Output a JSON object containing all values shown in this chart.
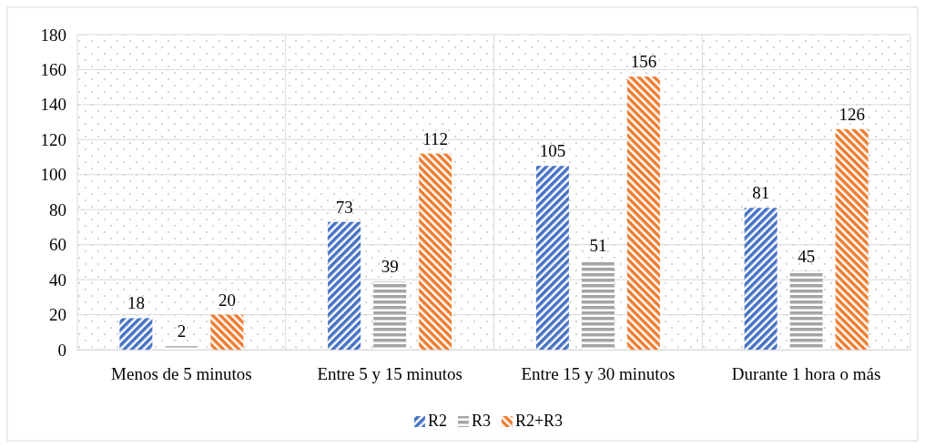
{
  "chart_data": {
    "type": "bar",
    "categories": [
      "Menos de 5 minutos",
      "Entre 5 y 15 minutos",
      "Entre 15 y 30 minutos",
      "Durante 1 hora o más"
    ],
    "series": [
      {
        "name": "R2",
        "color": "#4472c4",
        "values": [
          18,
          73,
          105,
          81
        ]
      },
      {
        "name": "R3",
        "color": "#a5a5a5",
        "values": [
          2,
          39,
          51,
          45
        ]
      },
      {
        "name": "R2+R3",
        "color": "#ed7d31",
        "values": [
          20,
          112,
          156,
          126
        ]
      }
    ],
    "ylim": [
      0,
      180
    ],
    "yticks": [
      0,
      20,
      40,
      60,
      80,
      100,
      120,
      140,
      160,
      180
    ],
    "grid": true,
    "legend": "bottom",
    "data_labels": true
  }
}
